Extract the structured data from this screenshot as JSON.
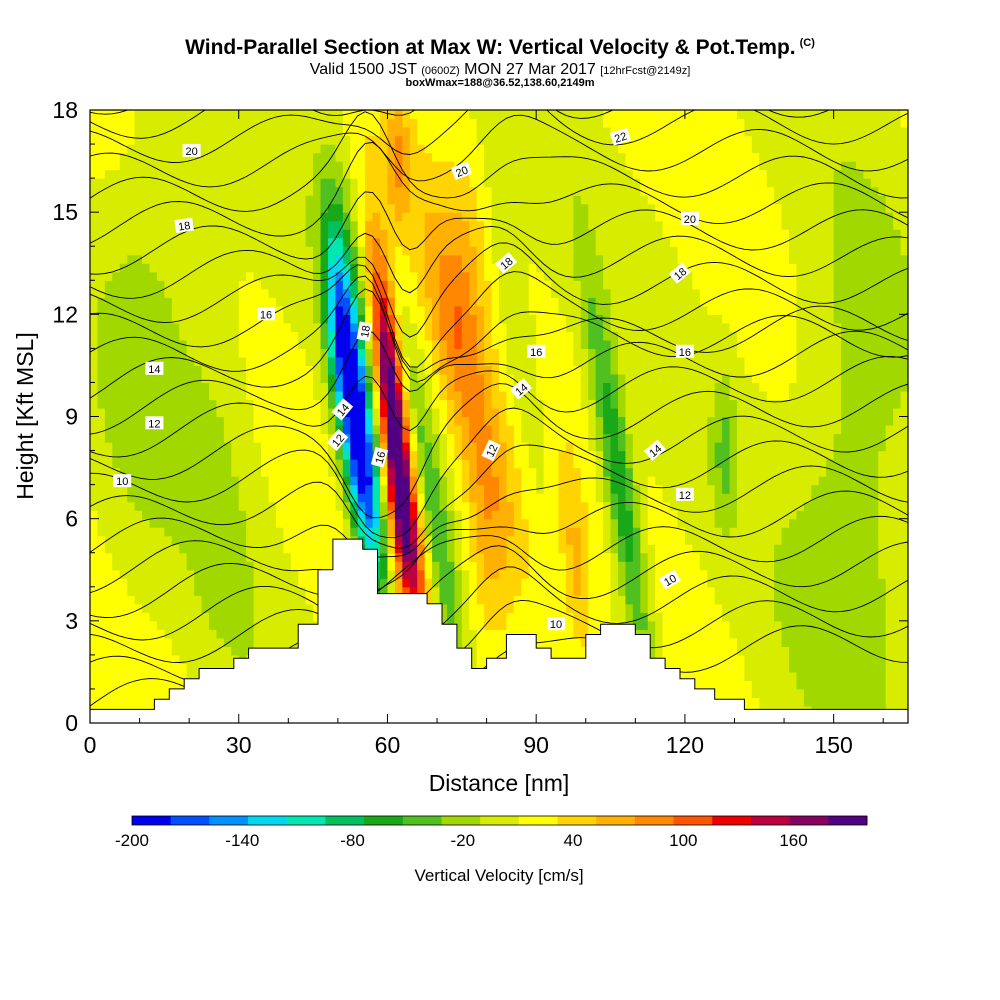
{
  "title": {
    "main": "Wind-Parallel Section at Max W: Vertical Velocity & Pot.Temp.",
    "copyright": "(C)",
    "valid_prefix": "Valid 1500 JST",
    "valid_utc": "(0600Z)",
    "valid_date": "MON 27 Mar 2017",
    "forecast": "[12hrFcst@2149z]",
    "box_info": "boxWmax=188@36.52,138.60,2149m"
  },
  "chart_data": {
    "type": "heatmap",
    "xlabel": "Distance [nm]",
    "ylabel": "Height [Kft MSL]",
    "xlim": [
      0,
      165
    ],
    "ylim": [
      0,
      18
    ],
    "x_ticks": [
      0,
      30,
      60,
      90,
      120,
      150
    ],
    "y_ticks": [
      0,
      3,
      6,
      9,
      12,
      15,
      18
    ],
    "colorbar": {
      "label": "Vertical Velocity [cm/s]",
      "tick_labels": [
        "-200",
        "-140",
        "-80",
        "-20",
        "40",
        "100",
        "160"
      ],
      "tick_values": [
        -200,
        -140,
        -80,
        -20,
        40,
        100,
        160
      ],
      "range": [
        -200,
        200
      ],
      "colors": [
        "#0000ee",
        "#0050ff",
        "#0090ff",
        "#00d8f0",
        "#00e8b0",
        "#00c060",
        "#18a818",
        "#50c020",
        "#a0d800",
        "#d8ec00",
        "#ffff00",
        "#ffd400",
        "#ffb000",
        "#ff8800",
        "#ff5400",
        "#ee0000",
        "#bb0040",
        "#880060",
        "#500080"
      ]
    },
    "contour_labels": [
      {
        "text": "20",
        "x": 20.5,
        "y": 16.8,
        "rot": 0
      },
      {
        "text": "22",
        "x": 107,
        "y": 17.2,
        "rot": -18
      },
      {
        "text": "20",
        "x": 75,
        "y": 16.2,
        "rot": -22
      },
      {
        "text": "18",
        "x": 19,
        "y": 14.6,
        "rot": -8
      },
      {
        "text": "20",
        "x": 121,
        "y": 14.8,
        "rot": 0
      },
      {
        "text": "18",
        "x": 84,
        "y": 13.5,
        "rot": -40
      },
      {
        "text": "18",
        "x": 119,
        "y": 13.2,
        "rot": -40
      },
      {
        "text": "16",
        "x": 35.5,
        "y": 12.0,
        "rot": 0
      },
      {
        "text": "18",
        "x": 55.5,
        "y": 11.5,
        "rot": -80
      },
      {
        "text": "16",
        "x": 90,
        "y": 10.9,
        "rot": 0
      },
      {
        "text": "16",
        "x": 120,
        "y": 10.9,
        "rot": 0
      },
      {
        "text": "14",
        "x": 13,
        "y": 10.4,
        "rot": 0
      },
      {
        "text": "14",
        "x": 87,
        "y": 9.8,
        "rot": -40
      },
      {
        "text": "14",
        "x": 51,
        "y": 9.2,
        "rot": -50
      },
      {
        "text": "12",
        "x": 13,
        "y": 8.8,
        "rot": 0
      },
      {
        "text": "12",
        "x": 50,
        "y": 8.3,
        "rot": -50
      },
      {
        "text": "12",
        "x": 81,
        "y": 8.0,
        "rot": -65
      },
      {
        "text": "16",
        "x": 58.5,
        "y": 7.8,
        "rot": -75
      },
      {
        "text": "14",
        "x": 114,
        "y": 8.0,
        "rot": -40
      },
      {
        "text": "10",
        "x": 6.5,
        "y": 7.1,
        "rot": 0
      },
      {
        "text": "12",
        "x": 120,
        "y": 6.7,
        "rot": 0
      },
      {
        "text": "10",
        "x": 117,
        "y": 4.2,
        "rot": -30
      },
      {
        "text": "10",
        "x": 94,
        "y": 2.9,
        "rot": 0
      }
    ],
    "terrain": [
      [
        0,
        0.4
      ],
      [
        13,
        0.4
      ],
      [
        13,
        0.7
      ],
      [
        16,
        0.7
      ],
      [
        16,
        1.0
      ],
      [
        19,
        1.0
      ],
      [
        19,
        1.3
      ],
      [
        22,
        1.3
      ],
      [
        22,
        1.6
      ],
      [
        29,
        1.6
      ],
      [
        29,
        1.9
      ],
      [
        32,
        1.9
      ],
      [
        32,
        2.2
      ],
      [
        42,
        2.2
      ],
      [
        42,
        2.9
      ],
      [
        46,
        2.9
      ],
      [
        46,
        4.5
      ],
      [
        49,
        4.5
      ],
      [
        49,
        5.4
      ],
      [
        55,
        5.4
      ],
      [
        55,
        5.1
      ],
      [
        58,
        5.1
      ],
      [
        58,
        3.8
      ],
      [
        68,
        3.8
      ],
      [
        68,
        3.5
      ],
      [
        71,
        3.5
      ],
      [
        71,
        2.9
      ],
      [
        74,
        2.9
      ],
      [
        74,
        2.2
      ],
      [
        77,
        2.2
      ],
      [
        77,
        1.6
      ],
      [
        80,
        1.6
      ],
      [
        80,
        1.9
      ],
      [
        84,
        1.9
      ],
      [
        84,
        2.6
      ],
      [
        90,
        2.6
      ],
      [
        90,
        2.2
      ],
      [
        93,
        2.2
      ],
      [
        93,
        1.9
      ],
      [
        100,
        1.9
      ],
      [
        100,
        2.6
      ],
      [
        103,
        2.6
      ],
      [
        103,
        2.9
      ],
      [
        110,
        2.9
      ],
      [
        110,
        2.6
      ],
      [
        113,
        2.6
      ],
      [
        113,
        1.9
      ],
      [
        116,
        1.9
      ],
      [
        116,
        1.6
      ],
      [
        119,
        1.6
      ],
      [
        119,
        1.3
      ],
      [
        122,
        1.3
      ],
      [
        122,
        1.0
      ],
      [
        126,
        1.0
      ],
      [
        126,
        0.7
      ],
      [
        132,
        0.7
      ],
      [
        132,
        0.4
      ],
      [
        165,
        0.4
      ]
    ]
  }
}
